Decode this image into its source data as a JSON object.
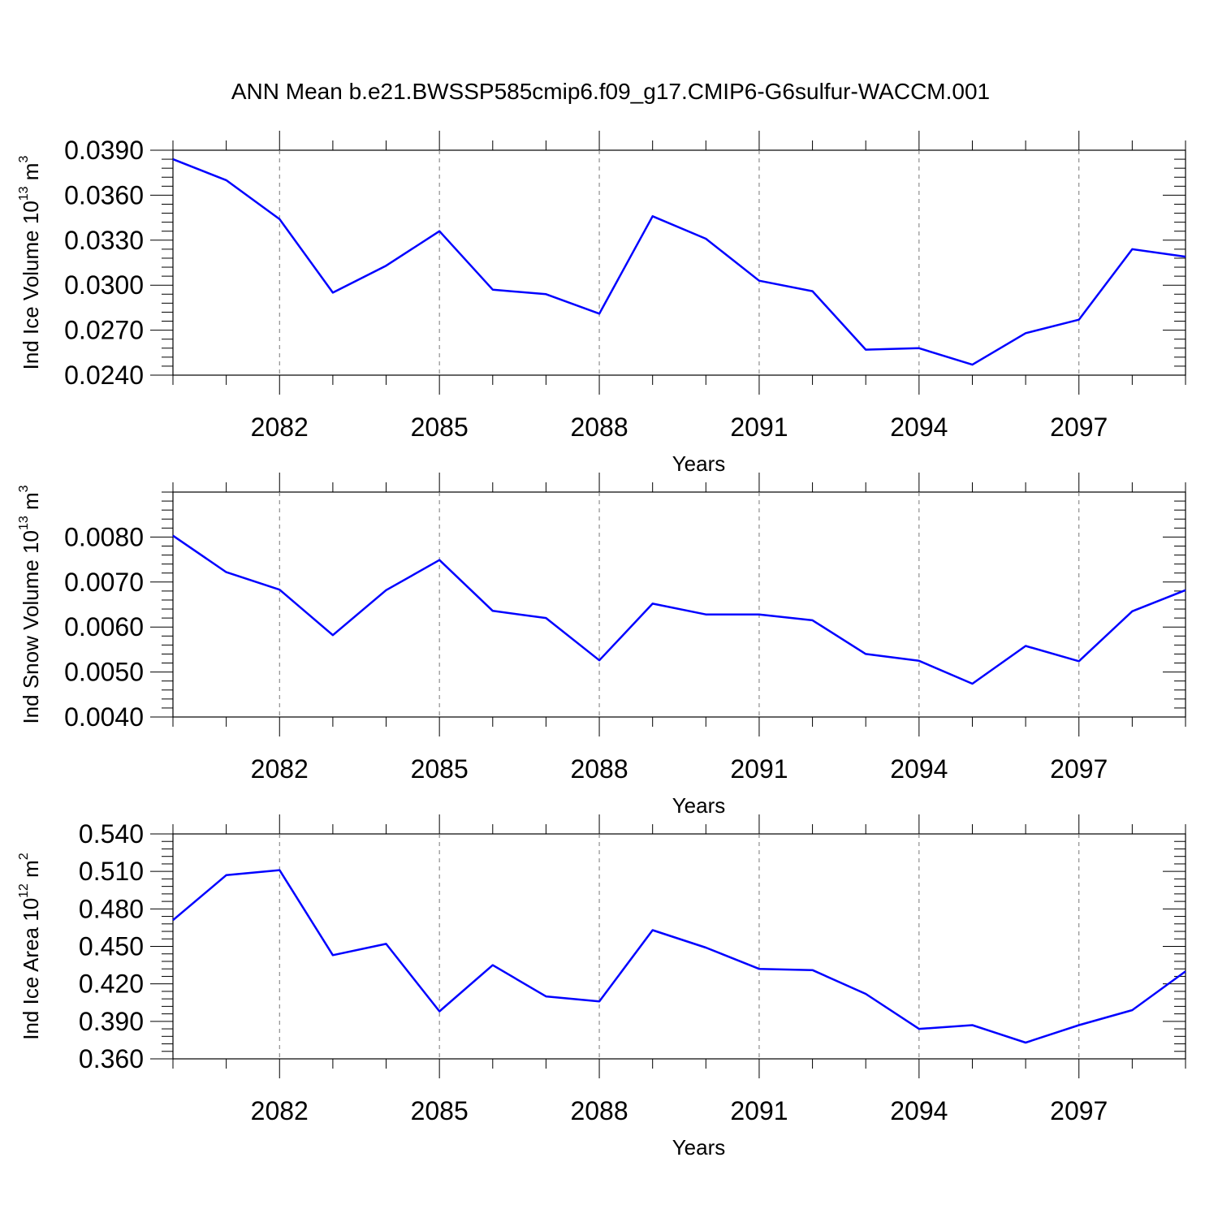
{
  "title": "ANN Mean b.e21.BWSSP585cmip6.f09_g17.CMIP6-G6sulfur-WACCM.001",
  "line_color": "#0000ff",
  "chart_data": [
    {
      "type": "line",
      "title": "ANN Mean b.e21.BWSSP585cmip6.f09_g17.CMIP6-G6sulfur-WACCM.001",
      "ylabel": "Ind Ice Volume 10",
      "ylabel_sup1": "13",
      "ylabel_mid": " m",
      "ylabel_sup2": "3",
      "xlabel": "Years",
      "xlim": [
        2080,
        2099
      ],
      "ylim": [
        0.024,
        0.039
      ],
      "xticks": [
        "2082",
        "2085",
        "2088",
        "2091",
        "2094",
        "2097"
      ],
      "yticks": [
        "0.0240",
        "0.0270",
        "0.0300",
        "0.0330",
        "0.0360",
        "0.0390"
      ],
      "grid": "x-major-dashed",
      "series": [
        {
          "x": [
            2080,
            2081,
            2082,
            2083,
            2084,
            2085,
            2086,
            2087,
            2088,
            2089,
            2090,
            2091,
            2092,
            2093,
            2094,
            2095,
            2096,
            2097,
            2098,
            2099
          ],
          "values": [
            0.0384,
            0.037,
            0.0344,
            0.0295,
            0.0313,
            0.0336,
            0.0297,
            0.0294,
            0.0281,
            0.0346,
            0.0331,
            0.0303,
            0.0296,
            0.0257,
            0.0258,
            0.0247,
            0.0268,
            0.0277,
            0.0324,
            0.0319
          ]
        }
      ]
    },
    {
      "type": "line",
      "ylabel": "Ind Snow Volume 10",
      "ylabel_sup1": "13",
      "ylabel_mid": " m",
      "ylabel_sup2": "3",
      "xlabel": "Years",
      "xlim": [
        2080,
        2099
      ],
      "ylim": [
        0.004,
        0.009
      ],
      "xticks": [
        "2082",
        "2085",
        "2088",
        "2091",
        "2094",
        "2097"
      ],
      "yticks": [
        "0.0040",
        "0.0050",
        "0.0060",
        "0.0070",
        "0.0080"
      ],
      "grid": "x-major-dashed",
      "series": [
        {
          "x": [
            2080,
            2081,
            2082,
            2083,
            2084,
            2085,
            2086,
            2087,
            2088,
            2089,
            2090,
            2091,
            2092,
            2093,
            2094,
            2095,
            2096,
            2097,
            2098,
            2099
          ],
          "values": [
            0.00803,
            0.00722,
            0.00683,
            0.00582,
            0.00682,
            0.00749,
            0.00636,
            0.0062,
            0.00526,
            0.00652,
            0.00628,
            0.00628,
            0.00615,
            0.0054,
            0.00525,
            0.00474,
            0.00558,
            0.00524,
            0.00635,
            0.00682
          ]
        }
      ]
    },
    {
      "type": "line",
      "ylabel": "Ind Ice Area 10",
      "ylabel_sup1": "12",
      "ylabel_mid": " m",
      "ylabel_sup2": "2",
      "xlabel": "Years",
      "xlim": [
        2080,
        2099
      ],
      "ylim": [
        0.36,
        0.54
      ],
      "xticks": [
        "2082",
        "2085",
        "2088",
        "2091",
        "2094",
        "2097"
      ],
      "yticks": [
        "0.360",
        "0.390",
        "0.420",
        "0.450",
        "0.480",
        "0.510",
        "0.540"
      ],
      "grid": "x-major-dashed",
      "series": [
        {
          "x": [
            2080,
            2081,
            2082,
            2083,
            2084,
            2085,
            2086,
            2087,
            2088,
            2089,
            2090,
            2091,
            2092,
            2093,
            2094,
            2095,
            2096,
            2097,
            2098,
            2099
          ],
          "values": [
            0.471,
            0.507,
            0.511,
            0.443,
            0.452,
            0.398,
            0.435,
            0.41,
            0.406,
            0.463,
            0.449,
            0.432,
            0.431,
            0.412,
            0.384,
            0.387,
            0.373,
            0.387,
            0.399,
            0.43
          ]
        }
      ]
    }
  ]
}
